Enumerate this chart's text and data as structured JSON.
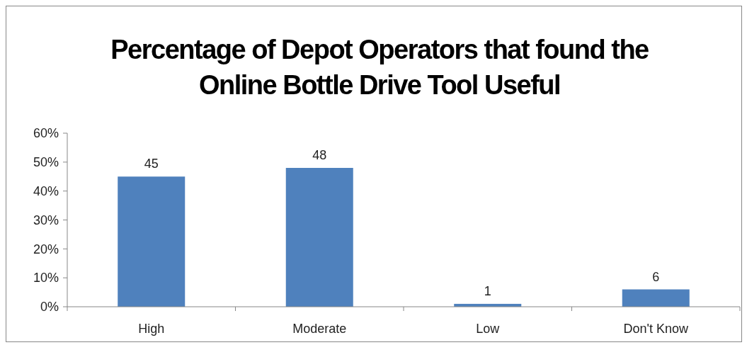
{
  "chart_data": {
    "type": "bar",
    "title": "Percentage of Depot Operators that found the Online Bottle Drive Tool Useful",
    "categories": [
      "High",
      "Moderate",
      "Low",
      "Don't Know"
    ],
    "values": [
      45,
      48,
      1,
      6
    ],
    "color": "#4f81bd",
    "ylim": [
      0,
      60
    ],
    "yticks": [
      {
        "value": 0,
        "label": "0%"
      },
      {
        "value": 10,
        "label": "10%"
      },
      {
        "value": 20,
        "label": "20%"
      },
      {
        "value": 30,
        "label": "30%"
      },
      {
        "value": 40,
        "label": "40%"
      },
      {
        "value": 50,
        "label": "50%"
      },
      {
        "value": 60,
        "label": "60%"
      }
    ],
    "data_labels": true
  }
}
